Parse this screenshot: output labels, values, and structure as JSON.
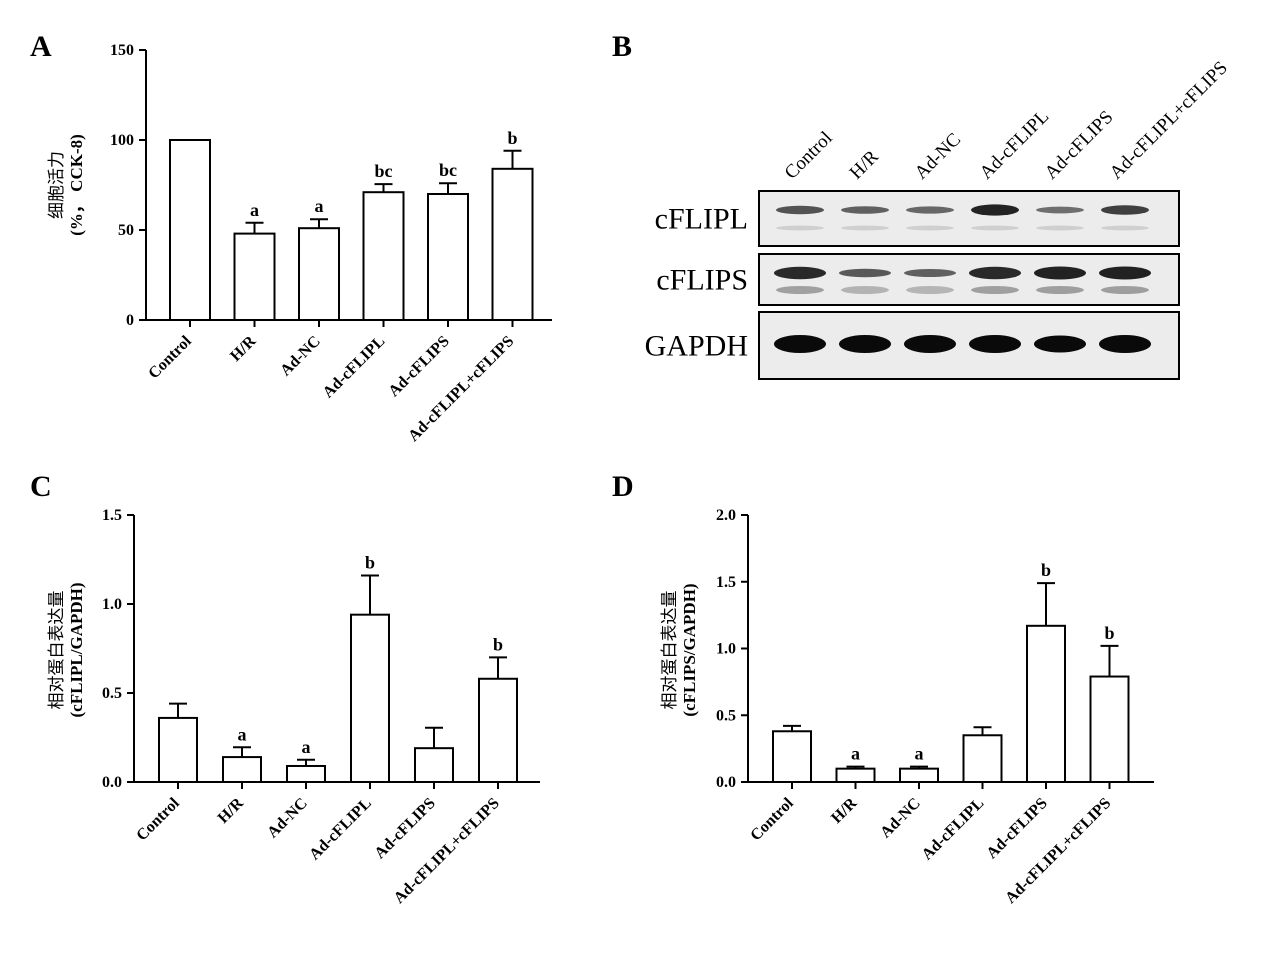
{
  "panels": {
    "A": "A",
    "B": "B",
    "C": "C",
    "D": "D"
  },
  "chart_data": [
    {
      "type": "bar",
      "panel": "A",
      "categories": [
        "Control",
        "H/R",
        "Ad-NC",
        "Ad-cFLIPL",
        "Ad-cFLIPS",
        "Ad-cFLIPL+cFLIPS"
      ],
      "values": [
        100,
        48,
        51,
        71,
        70,
        84
      ],
      "errors": [
        0,
        6,
        5,
        4.5,
        6,
        10
      ],
      "sig": [
        "",
        "a",
        "a",
        "bc",
        "bc",
        "b"
      ],
      "ylabel_cjk": "细胞活力",
      "ylabel_sub": "(%， CCK-8)",
      "ylim": [
        0,
        150
      ],
      "yticks": [
        "0",
        "50",
        "100",
        "150"
      ],
      "ytick_values": [
        0,
        50,
        100,
        150
      ]
    },
    {
      "type": "bar",
      "panel": "C",
      "categories": [
        "Control",
        "H/R",
        "Ad-NC",
        "Ad-cFLIPL",
        "Ad-cFLIPS",
        "Ad-cFLIPL+cFLIPS"
      ],
      "values": [
        0.36,
        0.14,
        0.09,
        0.94,
        0.19,
        0.58
      ],
      "errors": [
        0.08,
        0.055,
        0.035,
        0.22,
        0.115,
        0.12
      ],
      "sig": [
        "",
        "a",
        "a",
        "b",
        "",
        "b"
      ],
      "ylabel_cjk": "相对蛋白表达量",
      "ylabel_sub": "(cFLIPL/GAPDH)",
      "ylim": [
        0,
        1.5
      ],
      "yticks": [
        "0.0",
        "0.5",
        "1.0",
        "1.5"
      ],
      "ytick_values": [
        0,
        0.5,
        1.0,
        1.5
      ]
    },
    {
      "type": "bar",
      "panel": "D",
      "categories": [
        "Control",
        "H/R",
        "Ad-NC",
        "Ad-cFLIPL",
        "Ad-cFLIPS",
        "Ad-cFLIPL+cFLIPS"
      ],
      "values": [
        0.38,
        0.1,
        0.1,
        0.35,
        1.17,
        0.79
      ],
      "errors": [
        0.04,
        0.015,
        0.015,
        0.06,
        0.32,
        0.23
      ],
      "sig": [
        "",
        "a",
        "a",
        "",
        "b",
        "b"
      ],
      "ylabel_cjk": "相对蛋白表达量",
      "ylabel_sub": "(cFLIPS/GAPDH)",
      "ylim": [
        0,
        2.0
      ],
      "yticks": [
        "0.0",
        "0.5",
        "1.0",
        "1.5",
        "2.0"
      ],
      "ytick_values": [
        0,
        0.5,
        1.0,
        1.5,
        2.0
      ]
    }
  ],
  "blot": {
    "lanes": [
      "Control",
      "H/R",
      "Ad-NC",
      "Ad-cFLIPL",
      "Ad-cFLIPS",
      "Ad-cFLIPL+cFLIPS"
    ],
    "rows": [
      "cFLIPL",
      "cFLIPS",
      "GAPDH"
    ],
    "band_strength": [
      [
        0.55,
        0.45,
        0.4,
        0.9,
        0.35,
        0.7
      ],
      [
        0.85,
        0.45,
        0.4,
        0.85,
        0.9,
        0.9
      ],
      [
        1.0,
        1.0,
        1.0,
        1.0,
        0.95,
        1.0
      ]
    ]
  }
}
